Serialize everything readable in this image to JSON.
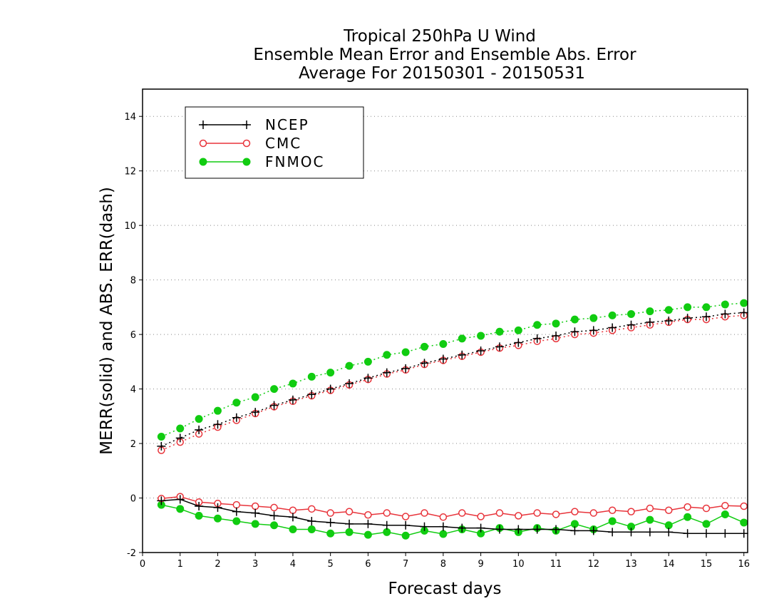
{
  "chart_data": {
    "type": "line",
    "title_lines": [
      "Tropical 250hPa U Wind",
      "Ensemble Mean Error and Ensemble Abs. Error",
      "Average For 20150301 - 20150531"
    ],
    "xlabel": "Forecast days",
    "ylabel": "MERR(solid) and ABS. ERR(dash)",
    "xlim": [
      0,
      16.1
    ],
    "ylim": [
      -2,
      15
    ],
    "xticks": [
      0,
      1,
      2,
      3,
      4,
      5,
      6,
      7,
      8,
      9,
      10,
      11,
      12,
      13,
      14,
      15,
      16
    ],
    "yticks": [
      -2,
      0,
      2,
      4,
      6,
      8,
      10,
      12,
      14
    ],
    "ytick_labels": [
      "-2",
      "0",
      "2",
      "4",
      "6",
      "8",
      "10",
      "12",
      "14"
    ],
    "grid": "horizontal dotted",
    "legend_position": "top-left",
    "x": [
      0.5,
      1,
      1.5,
      2,
      2.5,
      3,
      3.5,
      4,
      4.5,
      5,
      5.5,
      6,
      6.5,
      7,
      7.5,
      8,
      8.5,
      9,
      9.5,
      10,
      10.5,
      11,
      11.5,
      12,
      12.5,
      13,
      13.5,
      14,
      14.5,
      15,
      15.5,
      16
    ],
    "series": [
      {
        "name": "NCEP",
        "color": "#000000",
        "marker": "plus",
        "merr": [
          -0.1,
          -0.05,
          -0.3,
          -0.35,
          -0.5,
          -0.55,
          -0.65,
          -0.7,
          -0.85,
          -0.9,
          -0.95,
          -0.95,
          -1.0,
          -1.0,
          -1.05,
          -1.05,
          -1.1,
          -1.1,
          -1.15,
          -1.15,
          -1.15,
          -1.15,
          -1.2,
          -1.2,
          -1.25,
          -1.25,
          -1.25,
          -1.25,
          -1.3,
          -1.3,
          -1.3,
          -1.3
        ],
        "abs_err": [
          1.9,
          2.2,
          2.5,
          2.7,
          2.95,
          3.15,
          3.4,
          3.6,
          3.8,
          4.0,
          4.2,
          4.4,
          4.6,
          4.75,
          4.95,
          5.1,
          5.25,
          5.4,
          5.55,
          5.7,
          5.85,
          5.95,
          6.1,
          6.15,
          6.25,
          6.35,
          6.45,
          6.5,
          6.6,
          6.65,
          6.75,
          6.8
        ]
      },
      {
        "name": "CMC",
        "color": "#e8333a",
        "marker": "open-circle",
        "merr": [
          -0.02,
          0.05,
          -0.15,
          -0.2,
          -0.25,
          -0.3,
          -0.35,
          -0.45,
          -0.4,
          -0.55,
          -0.5,
          -0.62,
          -0.55,
          -0.68,
          -0.55,
          -0.7,
          -0.55,
          -0.68,
          -0.55,
          -0.65,
          -0.55,
          -0.6,
          -0.5,
          -0.55,
          -0.45,
          -0.5,
          -0.38,
          -0.45,
          -0.33,
          -0.38,
          -0.28,
          -0.3
        ],
        "abs_err": [
          1.75,
          2.05,
          2.35,
          2.6,
          2.85,
          3.1,
          3.35,
          3.55,
          3.75,
          3.95,
          4.15,
          4.35,
          4.55,
          4.7,
          4.9,
          5.05,
          5.2,
          5.35,
          5.5,
          5.6,
          5.75,
          5.85,
          6.0,
          6.05,
          6.15,
          6.25,
          6.35,
          6.45,
          6.55,
          6.55,
          6.65,
          6.7
        ]
      },
      {
        "name": "FNMOC",
        "color": "#11cc11",
        "marker": "filled-circle",
        "merr": [
          -0.25,
          -0.4,
          -0.65,
          -0.75,
          -0.85,
          -0.95,
          -1.0,
          -1.15,
          -1.15,
          -1.3,
          -1.25,
          -1.35,
          -1.25,
          -1.38,
          -1.2,
          -1.32,
          -1.15,
          -1.3,
          -1.1,
          -1.25,
          -1.1,
          -1.2,
          -0.95,
          -1.15,
          -0.85,
          -1.05,
          -0.8,
          -1.0,
          -0.7,
          -0.95,
          -0.6,
          -0.9
        ],
        "abs_err": [
          2.25,
          2.55,
          2.9,
          3.2,
          3.5,
          3.7,
          4.0,
          4.2,
          4.45,
          4.6,
          4.85,
          5.0,
          5.25,
          5.35,
          5.55,
          5.65,
          5.85,
          5.95,
          6.1,
          6.15,
          6.35,
          6.4,
          6.55,
          6.6,
          6.7,
          6.75,
          6.85,
          6.9,
          7.0,
          7.0,
          7.1,
          7.15
        ]
      }
    ]
  }
}
